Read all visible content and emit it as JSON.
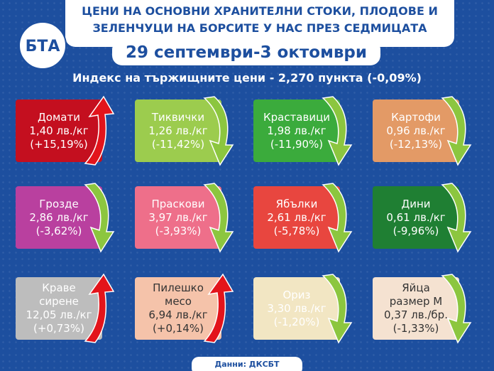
{
  "header": {
    "logo": "БТА",
    "title_lines": [
      "ЦЕНИ НА ОСНОВНИ ХРАНИТЕЛНИ СТОКИ, ПЛОДОВЕ И",
      "ЗЕЛЕНЧУЦИ НА БОРСИТЕ У НАС ПРЕЗ СЕДМИЦАТА"
    ],
    "date": "29 септември-3 октомври"
  },
  "index_line": "Индекс на тържищните цени - 2,270 пункта (-0,09%)",
  "cards": [
    {
      "name": [
        "Домати"
      ],
      "price": "1,40 лв./кг",
      "change": "(+15,19%)",
      "color": "#c40f1f",
      "text_color": "#ffffff",
      "arrow": "up"
    },
    {
      "name": [
        "Тиквички"
      ],
      "price": "1,26 лв./кг",
      "change": "(-11,42%)",
      "color": "#9ccc4e",
      "text_color": "#ffffff",
      "arrow": "down"
    },
    {
      "name": [
        "Краставици"
      ],
      "price": "1,98 лв./кг",
      "change": "(-11,90%)",
      "color": "#3bab3c",
      "text_color": "#ffffff",
      "arrow": "down"
    },
    {
      "name": [
        "Картофи"
      ],
      "price": "0,96 лв./кг",
      "change": "(-12,13%)",
      "color": "#e39a66",
      "text_color": "#ffffff",
      "arrow": "down"
    },
    {
      "name": [
        "Грозде"
      ],
      "price": "2,86 лв./кг",
      "change": "(-3,62%)",
      "color": "#b9409f",
      "text_color": "#ffffff",
      "arrow": "down"
    },
    {
      "name": [
        "Праскови"
      ],
      "price": "3,97 лв./кг",
      "change": "(-3,93%)",
      "color": "#ee6f8a",
      "text_color": "#ffffff",
      "arrow": "down"
    },
    {
      "name": [
        "Ябълки"
      ],
      "price": "2,61 лв./кг",
      "change": "(-5,78%)",
      "color": "#e8463f",
      "text_color": "#ffffff",
      "arrow": "down"
    },
    {
      "name": [
        "Дини"
      ],
      "price": "0,61 лв./кг",
      "change": "(-9,96%)",
      "color": "#1f7f33",
      "text_color": "#ffffff",
      "arrow": "down"
    },
    {
      "name": [
        "Краве",
        "сирене"
      ],
      "price": "12,05 лв./кг",
      "change": "(+0,73%)",
      "color": "#bdbdbd",
      "text_color": "#ffffff",
      "arrow": "up"
    },
    {
      "name": [
        "Пилешко",
        "месо"
      ],
      "price": "6,94 лв./кг",
      "change": "(+0,14%)",
      "color": "#f5c3aa",
      "text_color": "#333333",
      "arrow": "up"
    },
    {
      "name": [
        "Ориз"
      ],
      "price": "3,30 лв./кг",
      "change": "(-1,20%)",
      "color": "#f2e6c3",
      "text_color": "#ffffff",
      "arrow": "down"
    },
    {
      "name": [
        "Яйца",
        "размер М"
      ],
      "price": "0,37 лв./бр.",
      "change": "(-1,33%)",
      "color": "#f5e2d1",
      "text_color": "#333333",
      "arrow": "down"
    }
  ],
  "footer": "Данни: ДКСБТ"
}
